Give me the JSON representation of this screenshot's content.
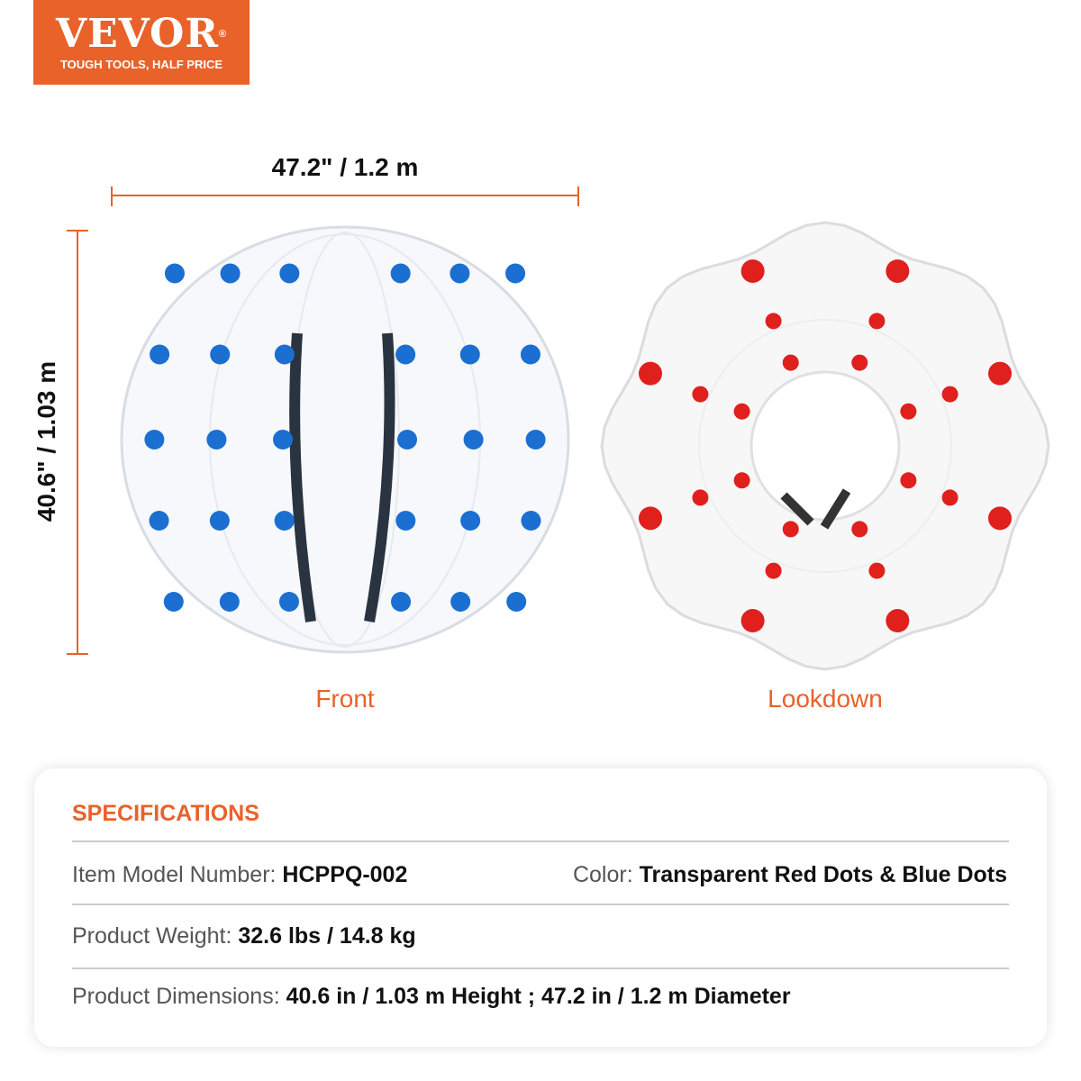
{
  "logo": {
    "brand": "VEVOR",
    "registered": "®",
    "tagline": "TOUGH TOOLS, HALF PRICE",
    "color": "#e8622a"
  },
  "dimensions": {
    "width": "47.2\" / 1.2 m",
    "height": "40.6\" / 1.03 m",
    "line_color": "#e8622a"
  },
  "views": {
    "front": "Front",
    "lookdown": "Lookdown",
    "front_dot_color": "#1a6fd1",
    "lookdown_dot_color": "#e0201c"
  },
  "specs": {
    "title": "SPECIFICATIONS",
    "model_label": "Item Model Number: ",
    "model_value": "HCPPQ-002",
    "color_label": "Color: ",
    "color_value": "Transparent Red Dots & Blue Dots",
    "weight_label": "Product Weight: ",
    "weight_value": "32.6 lbs / 14.8 kg",
    "dims_label": "Product Dimensions: ",
    "dims_value": "40.6 in / 1.03 m Height ; 47.2 in / 1.2 m Diameter"
  }
}
